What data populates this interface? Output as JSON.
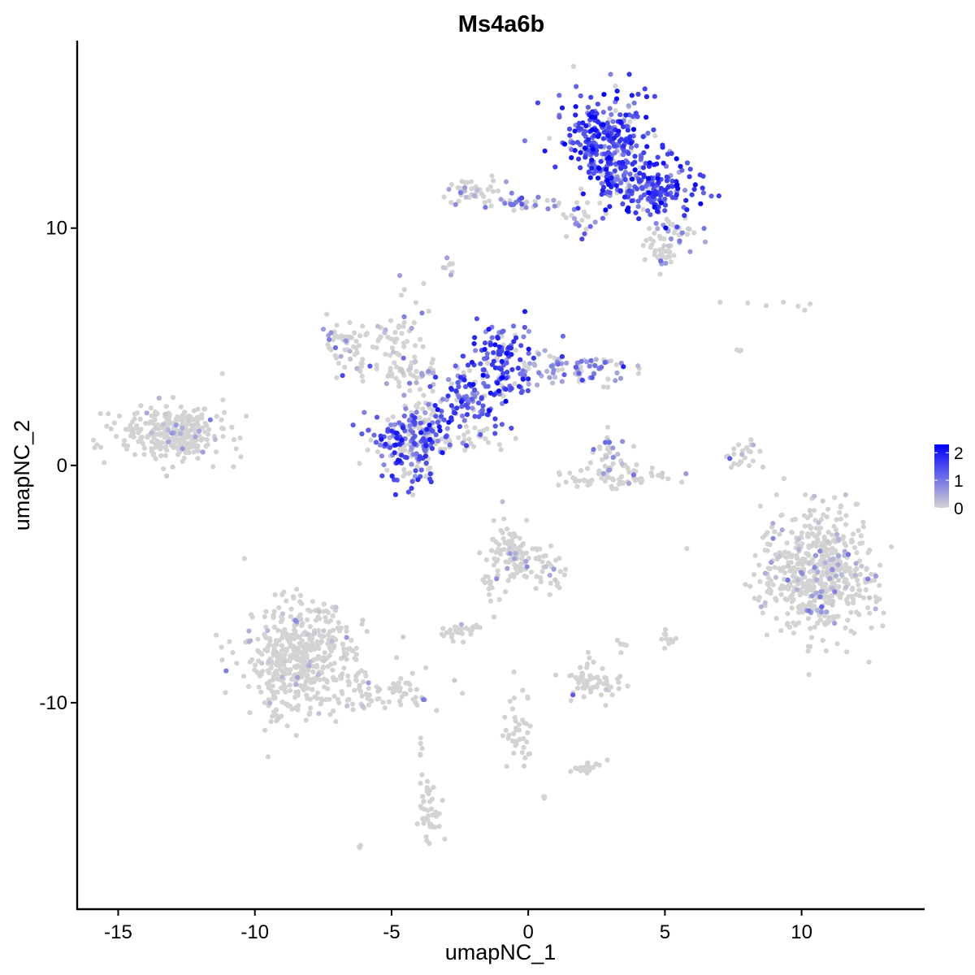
{
  "chart_data": {
    "type": "scatter",
    "title": "Ms4a6b",
    "xlabel": "umapNC_1",
    "ylabel": "umapNC_2",
    "xlim": [
      -16.5,
      14.5
    ],
    "ylim": [
      -18.7,
      17.9
    ],
    "x_ticks": [
      {
        "value": -15,
        "label": "-15"
      },
      {
        "value": -10,
        "label": "-10"
      },
      {
        "value": -5,
        "label": "-5"
      },
      {
        "value": 0,
        "label": "0"
      },
      {
        "value": 5,
        "label": "5"
      },
      {
        "value": 10,
        "label": "10"
      }
    ],
    "y_ticks": [
      {
        "value": 10,
        "label": "10"
      },
      {
        "value": 0,
        "label": "0"
      },
      {
        "value": -10,
        "label": "-10"
      }
    ],
    "grid": false,
    "legend": {
      "placement": "right",
      "type": "colorbar",
      "min": 0,
      "max": 2.3,
      "ticks": [
        {
          "value": 2,
          "label": "2"
        },
        {
          "value": 1,
          "label": "1"
        },
        {
          "value": 0,
          "label": "0"
        }
      ],
      "low_color": "#D3D3D3",
      "high_color": "#0000FF"
    },
    "clusters": [
      {
        "cx": 2.8,
        "cy": 13.8,
        "sx": 0.9,
        "sy": 0.9,
        "n": 260,
        "expr": 1.5
      },
      {
        "cx": 4.6,
        "cy": 11.6,
        "sx": 0.8,
        "sy": 0.6,
        "n": 160,
        "expr": 1.6
      },
      {
        "cx": 3.2,
        "cy": 12.5,
        "sx": 0.5,
        "sy": 0.6,
        "n": 70,
        "expr": 1.3
      },
      {
        "cx": 5.3,
        "cy": 9.7,
        "sx": 0.45,
        "sy": 0.4,
        "n": 40,
        "expr": 0.6
      },
      {
        "cx": 4.8,
        "cy": 8.9,
        "sx": 0.35,
        "sy": 0.25,
        "n": 30,
        "expr": 0.05
      },
      {
        "cx": -2.0,
        "cy": 11.6,
        "sx": 0.5,
        "sy": 0.35,
        "n": 45,
        "expr": 0.4
      },
      {
        "cx": -0.2,
        "cy": 11.1,
        "sx": 0.8,
        "sy": 0.15,
        "n": 35,
        "expr": 0.8
      },
      {
        "cx": 2.0,
        "cy": 10.6,
        "sx": 0.4,
        "sy": 0.4,
        "n": 25,
        "expr": 1.0
      },
      {
        "cx": -4.3,
        "cy": 1.0,
        "sx": 0.7,
        "sy": 0.8,
        "n": 180,
        "expr": 1.3
      },
      {
        "cx": -3.9,
        "cy": 1.4,
        "sx": 0.4,
        "sy": 1.0,
        "n": 80,
        "expr": 0.2
      },
      {
        "cx": -2.3,
        "cy": 2.8,
        "sx": 0.6,
        "sy": 0.6,
        "n": 90,
        "expr": 1.4
      },
      {
        "cx": -1.0,
        "cy": 4.3,
        "sx": 0.6,
        "sy": 0.9,
        "n": 130,
        "expr": 1.5
      },
      {
        "cx": 1.5,
        "cy": 4.1,
        "sx": 1.1,
        "sy": 0.4,
        "n": 90,
        "expr": 0.8
      },
      {
        "cx": -4.5,
        "cy": 4.0,
        "sx": 1.1,
        "sy": 0.3,
        "n": 60,
        "expr": 0.5
      },
      {
        "cx": -6.8,
        "cy": 5.4,
        "sx": 0.4,
        "sy": 0.4,
        "n": 40,
        "expr": 0.3
      },
      {
        "cx": -5.5,
        "cy": 5.3,
        "sx": 0.6,
        "sy": 0.25,
        "n": 25,
        "expr": 0.1
      },
      {
        "cx": -4.4,
        "cy": 6.0,
        "sx": 0.3,
        "sy": 1.0,
        "n": 25,
        "expr": 0.05
      },
      {
        "cx": -1.8,
        "cy": 1.2,
        "sx": 0.6,
        "sy": 0.3,
        "n": 25,
        "expr": 0.1
      },
      {
        "cx": -13.1,
        "cy": 1.3,
        "sx": 1.0,
        "sy": 0.6,
        "n": 300,
        "expr": 0.02
      },
      {
        "cx": 3.2,
        "cy": -0.5,
        "sx": 1.0,
        "sy": 0.3,
        "n": 70,
        "expr": 0.05
      },
      {
        "cx": 3.0,
        "cy": 0.5,
        "sx": 0.35,
        "sy": 0.5,
        "n": 30,
        "expr": 0.6
      },
      {
        "cx": 7.9,
        "cy": 0.5,
        "sx": 0.3,
        "sy": 0.4,
        "n": 25,
        "expr": 0.1
      },
      {
        "cx": 10.6,
        "cy": -4.5,
        "sx": 1.0,
        "sy": 1.3,
        "n": 550,
        "expr": 0.15
      },
      {
        "cx": -8.4,
        "cy": -8.2,
        "sx": 1.0,
        "sy": 1.2,
        "n": 480,
        "expr": 0.01
      },
      {
        "cx": -5.5,
        "cy": -9.5,
        "sx": 1.2,
        "sy": 0.4,
        "n": 80,
        "expr": 0.01
      },
      {
        "cx": -0.6,
        "cy": -3.8,
        "sx": 0.6,
        "sy": 0.6,
        "n": 110,
        "expr": 0.04
      },
      {
        "cx": 1.0,
        "cy": -4.8,
        "sx": 0.3,
        "sy": 0.5,
        "n": 20,
        "expr": 0.1
      },
      {
        "cx": -1.3,
        "cy": -5.3,
        "sx": 0.2,
        "sy": 0.6,
        "n": 15,
        "expr": 0.0
      },
      {
        "cx": -2.5,
        "cy": -6.9,
        "sx": 0.35,
        "sy": 0.2,
        "n": 30,
        "expr": 0.1
      },
      {
        "cx": 2.4,
        "cy": -9.2,
        "sx": 0.5,
        "sy": 0.4,
        "n": 60,
        "expr": 0.08
      },
      {
        "cx": 5.1,
        "cy": -7.3,
        "sx": 0.15,
        "sy": 0.2,
        "n": 12,
        "expr": 0.0
      },
      {
        "cx": 3.4,
        "cy": -7.6,
        "sx": 0.1,
        "sy": 0.15,
        "n": 6,
        "expr": 0.0
      },
      {
        "cx": -0.3,
        "cy": -11.0,
        "sx": 0.3,
        "sy": 0.8,
        "n": 40,
        "expr": 0.0
      },
      {
        "cx": 2.1,
        "cy": -12.7,
        "sx": 0.35,
        "sy": 0.15,
        "n": 20,
        "expr": 0.0
      },
      {
        "cx": -3.6,
        "cy": -14.5,
        "sx": 0.2,
        "sy": 0.6,
        "n": 40,
        "expr": 0.0
      },
      {
        "cx": -6.1,
        "cy": -16.1,
        "sx": 0.06,
        "sy": 0.06,
        "n": 3,
        "expr": 0.0
      },
      {
        "cx": 0.6,
        "cy": -14.0,
        "sx": 0.05,
        "sy": 0.05,
        "n": 3,
        "expr": 0.0
      },
      {
        "cx": -3.9,
        "cy": -11.8,
        "sx": 0.05,
        "sy": 0.3,
        "n": 5,
        "expr": 0.0
      },
      {
        "cx": -2.9,
        "cy": 8.6,
        "sx": 0.1,
        "sy": 0.25,
        "n": 8,
        "expr": 0.6
      },
      {
        "cx": 9.3,
        "cy": 6.7,
        "sx": 0.6,
        "sy": 0.1,
        "n": 6,
        "expr": 0.0
      },
      {
        "cx": 7.7,
        "cy": 4.8,
        "sx": 0.05,
        "sy": 0.1,
        "n": 3,
        "expr": 0.2
      },
      {
        "cx": 7.0,
        "cy": 6.9,
        "sx": 0.05,
        "sy": 0.05,
        "n": 1,
        "expr": 0.0
      }
    ]
  }
}
